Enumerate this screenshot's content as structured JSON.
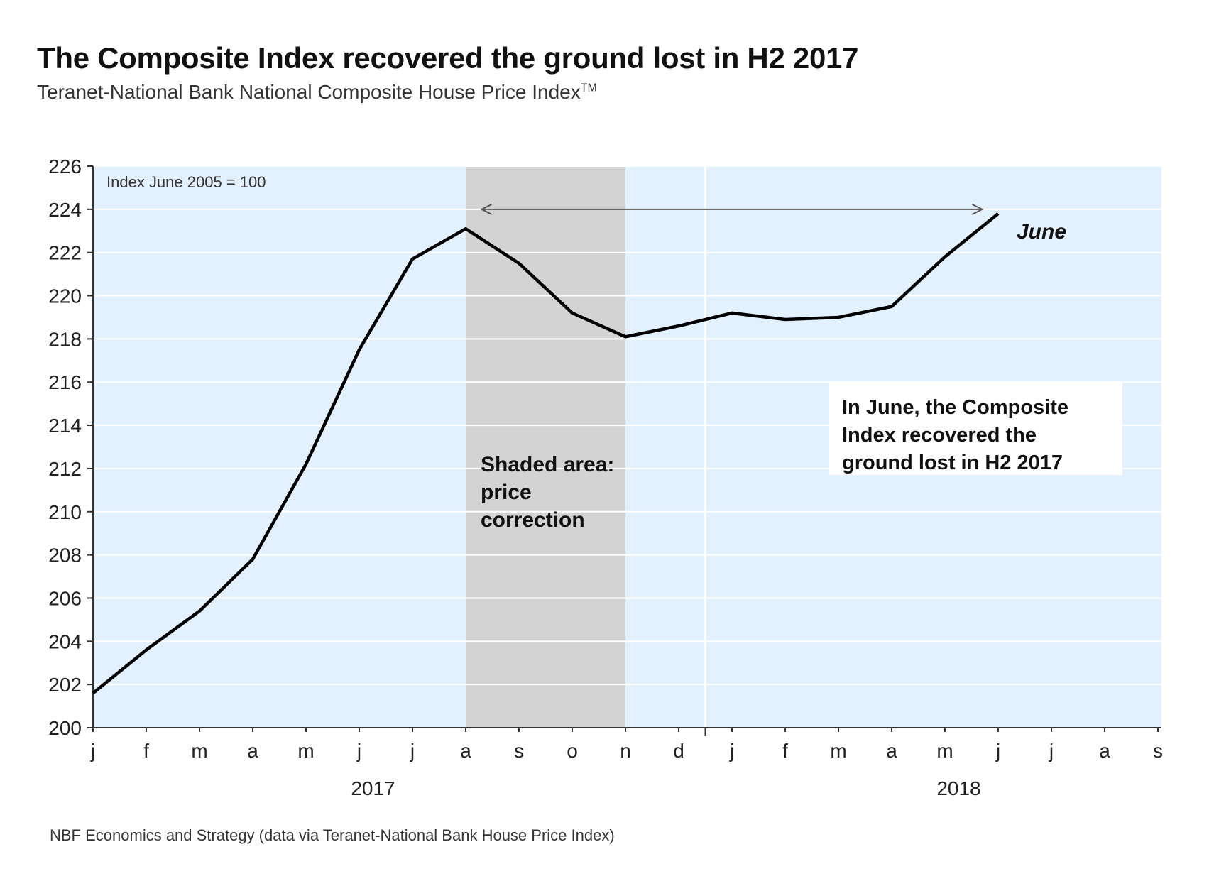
{
  "chart_data": {
    "type": "line",
    "title": "The Composite Index recovered the ground lost in H2 2017",
    "subtitle": "Teranet-National Bank National Composite House Price Index",
    "subtitle_mark": "TM",
    "source": "NBF Economics and Strategy (data via Teranet-National Bank House Price Index)",
    "index_note": "Index June 2005 = 100",
    "x_tick_labels": [
      "j",
      "f",
      "m",
      "a",
      "m",
      "j",
      "j",
      "a",
      "s",
      "o",
      "n",
      "d",
      "j",
      "f",
      "m",
      "a",
      "m",
      "j",
      "j",
      "a",
      "s"
    ],
    "year_labels": [
      {
        "label": "2017",
        "month_index": 5.5
      },
      {
        "label": "2018",
        "month_index": 16.5
      }
    ],
    "ylim": [
      200,
      226
    ],
    "y_ticks": [
      200,
      202,
      204,
      206,
      208,
      210,
      212,
      214,
      216,
      218,
      220,
      222,
      224,
      226
    ],
    "grid": true,
    "series": [
      {
        "values": [
          201.6,
          203.6,
          205.4,
          207.8,
          212.2,
          217.5,
          221.7,
          223.1,
          221.5,
          219.2,
          218.1,
          218.6,
          219.2,
          218.9,
          219.0,
          219.5,
          221.8,
          223.8
        ]
      }
    ],
    "shaded_region": {
      "from_index": 7,
      "to_index": 10,
      "label_lines": [
        "Shaded area:",
        "price",
        "correction"
      ]
    },
    "arrow": {
      "y": 224,
      "from_index": 7.3,
      "to_index": 16.7
    },
    "end_label": "June",
    "annotation_lines": [
      "In June, the Composite",
      "Index recovered the",
      "ground lost in H2 2017"
    ],
    "colors": {
      "plot_bg": "#e3f0fd",
      "shade": "#d3d3d3",
      "line": "#000000",
      "grid": "#ffffff",
      "annotation_bg": "#ffffff"
    }
  }
}
